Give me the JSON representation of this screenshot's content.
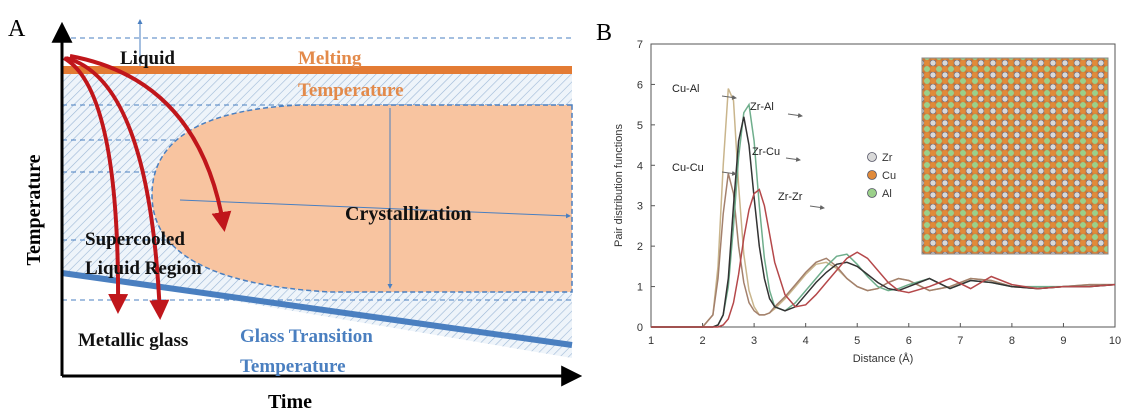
{
  "panel_a": {
    "label": "A",
    "liquid": "Liquid",
    "melting_1": "Melting",
    "melting_2": "Temperature",
    "crystallization": "Crystallization",
    "supercooled_1": "Supercooled",
    "supercooled_2": "Liquid Region",
    "metallic_glass": "Metallic glass",
    "glass_1": "Glass Transition",
    "glass_2": "Temperature",
    "y_label": "Temperature",
    "x_label": "Time"
  },
  "panel_b": {
    "label": "B",
    "inset_legend": [
      {
        "label": "Zr",
        "color": "#d9d9d9"
      },
      {
        "label": "Cu",
        "color": "#e08a3a"
      },
      {
        "label": "Al",
        "color": "#9bd08a"
      }
    ]
  },
  "chart_data": {
    "type": "line",
    "x_label": "Distance (Å)",
    "y_label": "Pair distribution functions",
    "xlim": [
      1,
      10
    ],
    "ylim": [
      0,
      7
    ],
    "xticks": [
      1,
      2,
      3,
      4,
      5,
      6,
      7,
      8,
      9,
      10
    ],
    "yticks": [
      0,
      1,
      2,
      3,
      4,
      5,
      6,
      7
    ],
    "x": [
      1,
      2.0,
      2.2,
      2.3,
      2.4,
      2.5,
      2.6,
      2.7,
      2.8,
      2.9,
      3.0,
      3.1,
      3.2,
      3.3,
      3.4,
      3.6,
      3.8,
      4.0,
      4.2,
      4.4,
      4.6,
      4.8,
      5.0,
      5.2,
      5.4,
      5.6,
      5.8,
      6.0,
      6.4,
      6.8,
      7.2,
      7.6,
      8.0,
      8.5,
      9.0,
      9.5,
      10
    ],
    "series": [
      {
        "name": "Cu-Al",
        "color": "#c9b58c",
        "values": [
          0,
          0,
          0.3,
          1.5,
          4.0,
          5.9,
          5.6,
          3.5,
          1.8,
          0.9,
          0.5,
          0.3,
          0.3,
          0.35,
          0.45,
          0.7,
          1.0,
          1.3,
          1.55,
          1.6,
          1.45,
          1.2,
          1.0,
          0.9,
          0.95,
          1.1,
          1.2,
          1.15,
          0.9,
          1.0,
          1.2,
          1.15,
          1.0,
          0.95,
          1.0,
          1.05,
          1.05
        ]
      },
      {
        "name": "Cu-Cu",
        "color": "#a3806c",
        "values": [
          0,
          0,
          0.3,
          1.2,
          2.8,
          3.8,
          3.3,
          2.0,
          1.1,
          0.6,
          0.4,
          0.3,
          0.3,
          0.35,
          0.5,
          0.75,
          1.05,
          1.35,
          1.6,
          1.7,
          1.5,
          1.2,
          1.0,
          0.9,
          0.95,
          1.1,
          1.2,
          1.15,
          0.9,
          1.0,
          1.2,
          1.15,
          1.0,
          0.95,
          1.0,
          1.05,
          1.05
        ]
      },
      {
        "name": "Zr-Al",
        "color": "#6fae8c",
        "values": [
          0,
          0,
          0,
          0.05,
          0.3,
          1.0,
          2.5,
          4.2,
          5.3,
          5.5,
          4.6,
          3.0,
          1.7,
          0.9,
          0.5,
          0.4,
          0.6,
          0.9,
          1.2,
          1.5,
          1.75,
          1.8,
          1.55,
          1.25,
          1.0,
          0.9,
          0.95,
          1.05,
          1.2,
          0.95,
          1.15,
          1.1,
          1.0,
          1.0,
          1.0,
          1.0,
          1.05
        ]
      },
      {
        "name": "Zr-Cu",
        "color": "#333333",
        "values": [
          0,
          0,
          0,
          0.05,
          0.3,
          1.2,
          3.0,
          4.6,
          5.2,
          4.5,
          3.2,
          2.0,
          1.2,
          0.7,
          0.5,
          0.4,
          0.5,
          0.8,
          1.1,
          1.35,
          1.55,
          1.6,
          1.5,
          1.3,
          1.1,
          0.95,
          0.9,
          1.0,
          1.2,
          0.95,
          1.15,
          1.1,
          1.0,
          0.95,
          1.0,
          1.0,
          1.05
        ]
      },
      {
        "name": "Zr-Zr",
        "color": "#b5484a",
        "values": [
          0,
          0,
          0,
          0,
          0.05,
          0.2,
          0.6,
          1.3,
          2.2,
          2.9,
          3.3,
          3.4,
          3.0,
          2.3,
          1.6,
          0.8,
          0.5,
          0.55,
          0.8,
          1.1,
          1.4,
          1.7,
          1.85,
          1.7,
          1.4,
          1.1,
          0.9,
          0.85,
          1.0,
          1.2,
          0.95,
          1.25,
          1.05,
          0.95,
          1.0,
          1.0,
          1.05
        ]
      }
    ]
  }
}
